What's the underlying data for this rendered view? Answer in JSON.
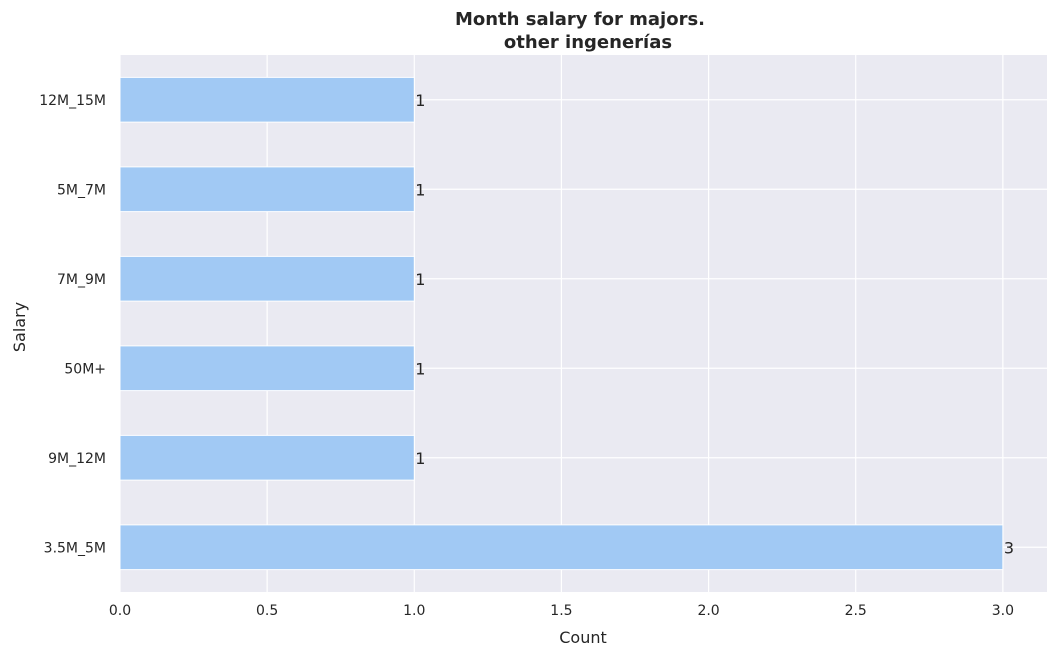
{
  "chart_data": {
    "type": "bar",
    "orientation": "horizontal",
    "title": [
      "Month salary for majors.",
      "other ingenerías"
    ],
    "xlabel": "Count",
    "ylabel": "Salary",
    "categories": [
      "12M_15M",
      "5M_7M",
      "7M_9M",
      "50M+",
      "9M_12M",
      "3.5M_5M"
    ],
    "values": [
      1,
      1,
      1,
      1,
      1,
      3
    ],
    "data_labels": [
      "1",
      "1",
      "1",
      "1",
      "1",
      "3"
    ],
    "xlim": [
      0,
      3.15
    ],
    "xticks": [
      "0.0",
      "0.5",
      "1.0",
      "1.5",
      "2.0",
      "2.5",
      "3.0"
    ],
    "grid": true,
    "colors": {
      "bar": "#a1c9f4",
      "plot_background": "#eaeaf2",
      "grid": "#ffffff",
      "text": "#262626"
    }
  }
}
